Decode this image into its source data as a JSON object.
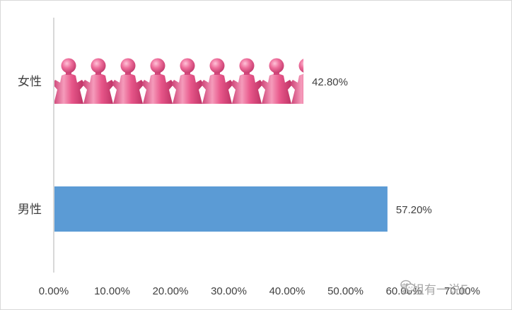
{
  "chart_data": {
    "type": "bar",
    "orientation": "horizontal",
    "categories": [
      "女性",
      "男性"
    ],
    "values": [
      42.8,
      57.2
    ],
    "data_labels": [
      "42.80%",
      "57.20%"
    ],
    "bar_styles": [
      "pictograph-woman",
      "solid"
    ],
    "xlim": [
      0,
      70
    ],
    "x_ticks": [
      "0.00%",
      "10.00%",
      "20.00%",
      "30.00%",
      "40.00%",
      "50.00%",
      "60.00%",
      "70.00%"
    ],
    "grid": false,
    "colors": {
      "solid_bar": "#5b9bd5",
      "pictograph": "#e8578a",
      "axis": "#bfbfbf"
    }
  },
  "watermark": {
    "text": "表姐有一说E"
  }
}
